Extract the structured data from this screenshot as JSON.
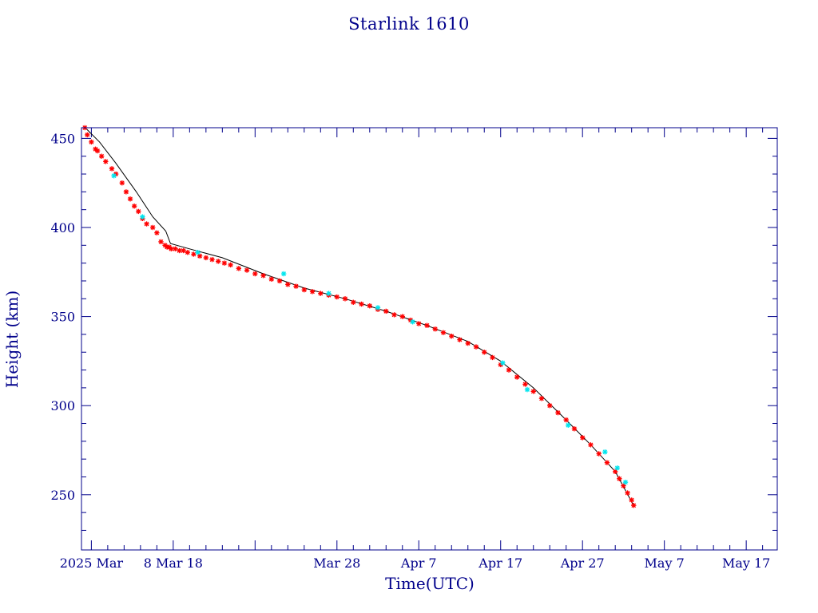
{
  "chart_data": {
    "type": "scatter",
    "title": "Starlink 1610",
    "xlabel": "Time(UTC)",
    "ylabel": "Height (km)",
    "x_unit": "date (2025)",
    "xlim": [
      "2025-02-24T19:00",
      "2025-05-20T19:00"
    ],
    "ylim": [
      219,
      456
    ],
    "x_ticks": [
      {
        "date": "2025-02-26",
        "label": "2025 Mar"
      },
      {
        "date": "2025-03-08",
        "label": "8 Mar 18"
      },
      {
        "date": "2025-03-28",
        "label": "Mar 28"
      },
      {
        "date": "2025-04-07",
        "label": "Apr  7"
      },
      {
        "date": "2025-04-17",
        "label": "Apr 17"
      },
      {
        "date": "2025-04-27",
        "label": "Apr 27"
      },
      {
        "date": "2025-05-07",
        "label": "May  7"
      },
      {
        "date": "2025-05-17",
        "label": "May 17"
      }
    ],
    "y_ticks": [
      250,
      300,
      350,
      400,
      450
    ],
    "grid": false,
    "colors": {
      "text_and_axes": "#00008b",
      "trend_line": "#000000",
      "observations": "#ff0000",
      "highlighted_observations": "#00e5ee"
    },
    "trend_line": {
      "x": [
        "2025-02-25T06:00",
        "2025-02-27T00:00",
        "2025-03-01T00:00",
        "2025-03-03T12:00",
        "2025-03-05T12:00",
        "2025-03-07T02:00",
        "2025-03-07T16:00",
        "2025-03-10T00:00",
        "2025-03-14T00:00",
        "2025-03-19T00:00",
        "2025-03-24T00:00",
        "2025-03-29T00:00",
        "2025-04-03T00:00",
        "2025-04-08T00:00",
        "2025-04-13T00:00",
        "2025-04-17T00:00",
        "2025-04-21T00:00",
        "2025-04-25T00:00",
        "2025-04-28T00:00",
        "2025-05-01T00:00",
        "2025-05-03T06:00"
      ],
      "y": [
        456,
        448,
        436,
        420,
        406,
        398,
        391,
        388,
        383,
        374,
        366,
        360,
        353,
        345,
        336,
        325,
        310,
        292,
        278,
        263,
        244
      ]
    },
    "series": [
      {
        "marker": "asterisk",
        "color": "#ff0000",
        "x": [
          "2025-02-25T05:00",
          "2025-02-25T12:00",
          "2025-02-26T00:00",
          "2025-02-26T12:00",
          "2025-02-26T18:00",
          "2025-02-27T06:00",
          "2025-02-27T18:00",
          "2025-02-28T12:00",
          "2025-03-01T00:00",
          "2025-03-01T18:00",
          "2025-03-02T06:00",
          "2025-03-02T18:00",
          "2025-03-03T06:00",
          "2025-03-03T18:00",
          "2025-03-04T06:00",
          "2025-03-04T18:00",
          "2025-03-05T12:00",
          "2025-03-06T00:00",
          "2025-03-06T12:00",
          "2025-03-07T00:00",
          "2025-03-07T06:00",
          "2025-03-07T12:00",
          "2025-03-07T18:00",
          "2025-03-08T06:00",
          "2025-03-08T18:00",
          "2025-03-09T06:00",
          "2025-03-09T18:00",
          "2025-03-10T12:00",
          "2025-03-11T06:00",
          "2025-03-12T00:00",
          "2025-03-12T18:00",
          "2025-03-13T12:00",
          "2025-03-14T06:00",
          "2025-03-15T00:00",
          "2025-03-16T00:00",
          "2025-03-17T00:00",
          "2025-03-18T00:00",
          "2025-03-19T00:00",
          "2025-03-20T00:00",
          "2025-03-21T00:00",
          "2025-03-22T00:00",
          "2025-03-23T00:00",
          "2025-03-24T00:00",
          "2025-03-25T00:00",
          "2025-03-26T00:00",
          "2025-03-27T00:00",
          "2025-03-28T00:00",
          "2025-03-29T00:00",
          "2025-03-30T00:00",
          "2025-03-31T00:00",
          "2025-04-01T00:00",
          "2025-04-02T00:00",
          "2025-04-03T00:00",
          "2025-04-04T00:00",
          "2025-04-05T00:00",
          "2025-04-06T00:00",
          "2025-04-07T00:00",
          "2025-04-08T00:00",
          "2025-04-09T00:00",
          "2025-04-10T00:00",
          "2025-04-11T00:00",
          "2025-04-12T00:00",
          "2025-04-13T00:00",
          "2025-04-14T00:00",
          "2025-04-15T00:00",
          "2025-04-16T00:00",
          "2025-04-17T00:00",
          "2025-04-18T00:00",
          "2025-04-19T00:00",
          "2025-04-20T00:00",
          "2025-04-21T00:00",
          "2025-04-22T00:00",
          "2025-04-23T00:00",
          "2025-04-24T00:00",
          "2025-04-25T00:00",
          "2025-04-26T00:00",
          "2025-04-27T00:00",
          "2025-04-28T00:00",
          "2025-04-29T00:00",
          "2025-04-30T00:00",
          "2025-05-01T00:00",
          "2025-05-01T12:00",
          "2025-05-02T00:00",
          "2025-05-02T12:00",
          "2025-05-03T00:00",
          "2025-05-03T06:00"
        ],
        "y": [
          456,
          452,
          448,
          444,
          443,
          440,
          437,
          433,
          430,
          425,
          420,
          416,
          412,
          409,
          405,
          402,
          400,
          397,
          392,
          390,
          389,
          389,
          388,
          388,
          387,
          387,
          386,
          385,
          384,
          383,
          382,
          381,
          380,
          379,
          377,
          376,
          374,
          373,
          371,
          370,
          368,
          367,
          365,
          364,
          363,
          362,
          361,
          360,
          358,
          357,
          356,
          354,
          353,
          351,
          350,
          348,
          346,
          345,
          343,
          341,
          339,
          337,
          335,
          333,
          330,
          327,
          323,
          320,
          316,
          312,
          308,
          304,
          300,
          296,
          292,
          287,
          282,
          278,
          273,
          268,
          263,
          259,
          255,
          251,
          247,
          244
        ]
      },
      {
        "marker": "asterisk",
        "color": "#00e5ee",
        "x": [
          "2025-02-28T18:00",
          "2025-03-04T06:00",
          "2025-03-11T00:00",
          "2025-03-21T12:00",
          "2025-03-27T00:00",
          "2025-04-02T00:00",
          "2025-04-06T06:00",
          "2025-04-17T06:00",
          "2025-04-20T06:00",
          "2025-04-25T06:00",
          "2025-04-29T18:00",
          "2025-05-01T06:00",
          "2025-05-02T06:00"
        ],
        "y": [
          429,
          406,
          386,
          374,
          363,
          355,
          347,
          324,
          309,
          289,
          274,
          265,
          257
        ]
      }
    ]
  }
}
